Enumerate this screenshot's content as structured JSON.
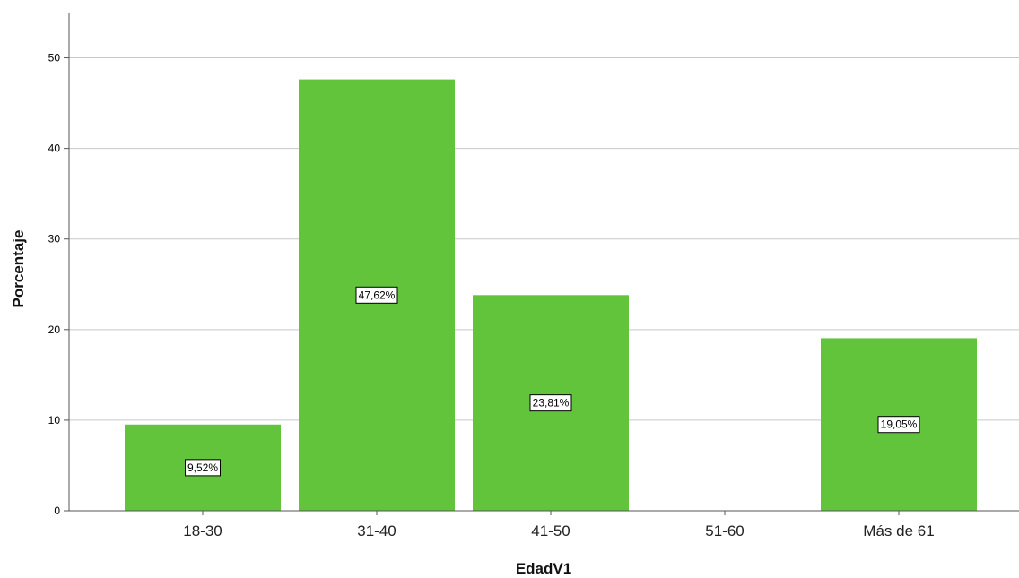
{
  "chart_data": {
    "type": "bar",
    "categories": [
      "18-30",
      "31-40",
      "41-50",
      "51-60",
      "Más de 61"
    ],
    "values": [
      9.52,
      47.62,
      23.81,
      0,
      19.05
    ],
    "data_labels": [
      "9,52%",
      "47,62%",
      "23,81%",
      "",
      "19,05%"
    ],
    "xlabel": "EdadV1",
    "ylabel": "Porcentaje",
    "ylim": [
      0,
      55
    ],
    "yticks": [
      0,
      10,
      20,
      30,
      40,
      50
    ],
    "grid": true,
    "colors": {
      "bar": "#62c43b",
      "grid": "#c8c8c8",
      "axis": "#555555"
    }
  }
}
